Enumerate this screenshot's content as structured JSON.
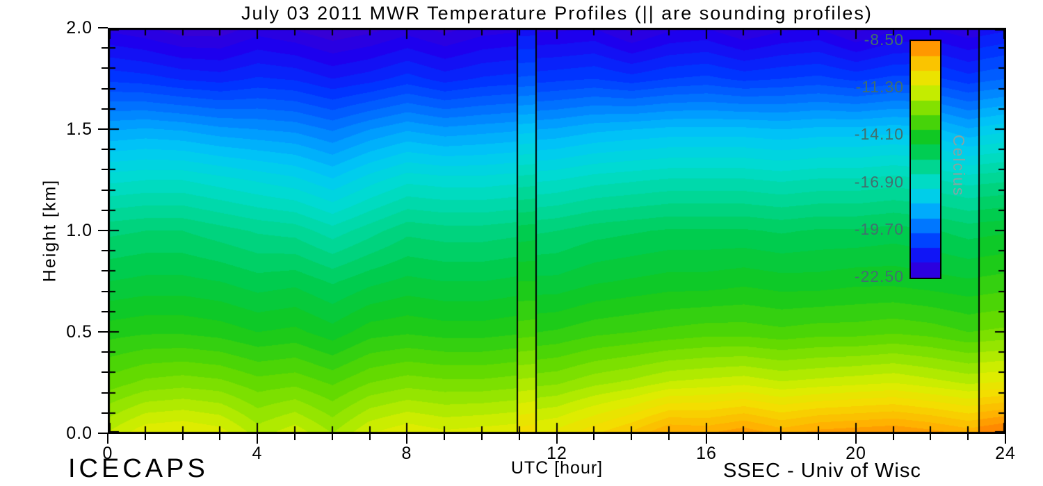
{
  "title": "July 03 2011 MWR Temperature Profiles (|| are sounding profiles)",
  "axes": {
    "xlabel": "UTC [hour]",
    "ylabel": "Height [km]",
    "x_tick_labels": [
      "0",
      "4",
      "8",
      "12",
      "16",
      "20",
      "24"
    ],
    "y_tick_labels": [
      "2.0",
      "1.5",
      "1.0",
      "0.5",
      "0.0"
    ]
  },
  "footer": {
    "left": "ICECAPS",
    "right": "SSEC - Univ of Wisc"
  },
  "colorbar": {
    "label": "Celcius",
    "tick_labels": [
      "-8.50",
      "-11.30",
      "-14.10",
      "-16.90",
      "-19.70",
      "-22.50"
    ],
    "text_color": "#41706e",
    "label_color": "#85a5a3"
  },
  "chart_data": {
    "type": "heatmap",
    "title": "July 03 2011 MWR Temperature Profiles (|| are sounding profiles)",
    "xlabel": "UTC [hour]",
    "ylabel": "Height [km]",
    "units": "Celcius",
    "xlim": [
      0,
      24
    ],
    "ylim": [
      0,
      2
    ],
    "x_major_ticks": [
      0,
      4,
      8,
      12,
      16,
      20,
      24
    ],
    "x_minor_step": 1,
    "y_major_ticks": [
      2.0,
      1.5,
      1.0,
      0.5,
      0.0
    ],
    "y_minor_step": 0.1,
    "x_hours": [
      0,
      1,
      2,
      3,
      4,
      5,
      6,
      7,
      8,
      9,
      10,
      11,
      12,
      13,
      14,
      15,
      16,
      17,
      18,
      19,
      20,
      21,
      22,
      23,
      24
    ],
    "heights_km": [
      0.0,
      0.25,
      0.5,
      0.75,
      1.0,
      1.25,
      1.5,
      1.75,
      2.0
    ],
    "temperature_c": [
      [
        -11.6,
        -11.0,
        -10.9,
        -11.1,
        -11.8,
        -11.4,
        -12.0,
        -11.3,
        -11.0,
        -11.2,
        -11.1,
        -11.0,
        -10.8,
        -10.3,
        -9.8,
        -9.1,
        -9.2,
        -8.9,
        -9.3,
        -9.0,
        -8.9,
        -8.8,
        -9.0,
        -9.3,
        -9.0
      ],
      [
        -12.9,
        -12.6,
        -12.5,
        -12.6,
        -12.9,
        -12.8,
        -13.1,
        -12.7,
        -12.5,
        -12.6,
        -12.6,
        -12.5,
        -12.4,
        -12.1,
        -11.9,
        -11.6,
        -11.5,
        -11.4,
        -11.6,
        -11.5,
        -11.4,
        -11.3,
        -11.5,
        -11.7,
        -11.6
      ],
      [
        -13.9,
        -13.8,
        -13.8,
        -13.9,
        -14.1,
        -14.0,
        -14.3,
        -13.9,
        -13.8,
        -13.9,
        -13.9,
        -13.8,
        -13.7,
        -13.5,
        -13.4,
        -13.3,
        -13.2,
        -13.2,
        -13.3,
        -13.2,
        -13.2,
        -13.1,
        -13.2,
        -13.4,
        -13.3
      ],
      [
        -14.8,
        -14.7,
        -14.7,
        -14.8,
        -15.0,
        -14.9,
        -15.2,
        -14.9,
        -14.7,
        -14.8,
        -14.8,
        -14.7,
        -14.7,
        -14.5,
        -14.4,
        -14.3,
        -14.3,
        -14.2,
        -14.3,
        -14.3,
        -14.2,
        -14.2,
        -14.3,
        -14.4,
        -14.3
      ],
      [
        -15.6,
        -15.5,
        -15.5,
        -15.7,
        -15.9,
        -16.0,
        -16.4,
        -16.0,
        -15.6,
        -15.7,
        -15.7,
        -15.6,
        -15.5,
        -15.3,
        -15.2,
        -15.1,
        -15.1,
        -15.1,
        -15.2,
        -15.1,
        -15.1,
        -15.0,
        -15.1,
        -15.3,
        -15.2
      ],
      [
        -17.0,
        -16.9,
        -16.9,
        -17.1,
        -17.3,
        -17.5,
        -17.9,
        -17.4,
        -17.0,
        -17.1,
        -17.1,
        -17.0,
        -16.9,
        -16.7,
        -16.6,
        -16.5,
        -16.5,
        -16.5,
        -16.6,
        -16.5,
        -16.5,
        -16.4,
        -16.5,
        -16.7,
        -16.6
      ],
      [
        -18.7,
        -18.6,
        -18.7,
        -18.9,
        -19.0,
        -19.1,
        -19.4,
        -19.0,
        -18.7,
        -18.9,
        -18.8,
        -18.7,
        -18.6,
        -18.4,
        -18.3,
        -18.2,
        -18.2,
        -18.2,
        -18.3,
        -18.2,
        -18.2,
        -18.1,
        -18.2,
        -18.6,
        -18.4
      ],
      [
        -20.5,
        -20.6,
        -20.8,
        -20.9,
        -20.7,
        -20.8,
        -21.1,
        -20.9,
        -20.6,
        -20.9,
        -20.7,
        -20.6,
        -20.5,
        -20.4,
        -20.6,
        -20.4,
        -20.3,
        -20.5,
        -20.4,
        -20.3,
        -20.5,
        -20.3,
        -20.3,
        -20.6,
        -20.4
      ],
      [
        -21.9,
        -22.1,
        -22.4,
        -22.4,
        -22.0,
        -22.2,
        -22.5,
        -22.3,
        -22.0,
        -22.3,
        -22.0,
        -21.9,
        -21.9,
        -21.8,
        -22.3,
        -21.9,
        -21.8,
        -22.2,
        -21.9,
        -21.8,
        -22.3,
        -21.9,
        -21.8,
        -22.1,
        -21.9
      ]
    ],
    "value_range_c": [
      -22.5,
      -8.5
    ],
    "contour_step_c": 0.35,
    "colorbar_step_c": 0.875,
    "sounding_lines_utc": [
      10.95,
      11.45,
      23.3
    ],
    "sounding_bands": [
      {
        "x0": 10.95,
        "x1": 11.45,
        "warm_offset_c": 0.6
      },
      {
        "x0": 23.3,
        "x1": 24.0,
        "warm_offset_c": 0.7
      }
    ],
    "colormap": [
      {
        "v": -22.5,
        "c": "#3c00cf"
      },
      {
        "v": -21.6,
        "c": "#1c00ef"
      },
      {
        "v": -20.6,
        "c": "#0033ff"
      },
      {
        "v": -19.7,
        "c": "#0066ff"
      },
      {
        "v": -18.8,
        "c": "#009fff"
      },
      {
        "v": -18.0,
        "c": "#00c8f5"
      },
      {
        "v": -17.0,
        "c": "#00dcd0"
      },
      {
        "v": -16.0,
        "c": "#00d795"
      },
      {
        "v": -15.0,
        "c": "#00cc4f"
      },
      {
        "v": -14.1,
        "c": "#12c81e"
      },
      {
        "v": -13.0,
        "c": "#5ad800"
      },
      {
        "v": -12.0,
        "c": "#a2e800"
      },
      {
        "v": -11.3,
        "c": "#d9ef00"
      },
      {
        "v": -10.4,
        "c": "#f4dd00"
      },
      {
        "v": -9.4,
        "c": "#ffb300"
      },
      {
        "v": -8.5,
        "c": "#ff7f00"
      }
    ]
  }
}
